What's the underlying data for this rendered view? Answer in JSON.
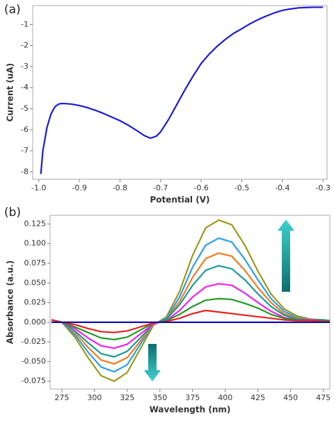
{
  "chart_data": [
    {
      "type": "line",
      "annotation": "(a)",
      "xlabel": "Potential (V)",
      "ylabel": "Current (uA)",
      "x": [
        -0.995,
        -0.99,
        -0.98,
        -0.97,
        -0.96,
        -0.95,
        -0.94,
        -0.92,
        -0.9,
        -0.88,
        -0.86,
        -0.84,
        -0.82,
        -0.8,
        -0.78,
        -0.76,
        -0.74,
        -0.725,
        -0.71,
        -0.7,
        -0.68,
        -0.66,
        -0.64,
        -0.62,
        -0.6,
        -0.58,
        -0.56,
        -0.54,
        -0.52,
        -0.5,
        -0.48,
        -0.46,
        -0.44,
        -0.42,
        -0.4,
        -0.38,
        -0.36,
        -0.34,
        -0.32,
        -0.3
      ],
      "series": [
        {
          "color": "#1a1adc",
          "values": [
            -8.1,
            -7.0,
            -5.9,
            -5.25,
            -4.9,
            -4.77,
            -4.75,
            -4.78,
            -4.85,
            -4.95,
            -5.08,
            -5.23,
            -5.4,
            -5.57,
            -5.78,
            -6.02,
            -6.28,
            -6.4,
            -6.3,
            -6.1,
            -5.5,
            -4.8,
            -4.1,
            -3.45,
            -2.85,
            -2.4,
            -2.02,
            -1.7,
            -1.42,
            -1.2,
            -0.97,
            -0.77,
            -0.6,
            -0.45,
            -0.33,
            -0.26,
            -0.21,
            -0.19,
            -0.18,
            -0.18
          ]
        }
      ],
      "xlim": [
        -1.015,
        -0.29
      ],
      "ylim": [
        -8.35,
        -0.1
      ],
      "xticks": [
        {
          "value": -1,
          "label": "-1.0"
        },
        -0.9,
        -0.8,
        -0.7,
        -0.6,
        -0.5,
        -0.4,
        -0.3
      ],
      "yticks": [
        -1,
        -2,
        -3,
        -4,
        -5,
        -6,
        -7,
        -8
      ]
    },
    {
      "type": "line",
      "annotation": "(b)",
      "xlabel": "Wavelength (nm)",
      "ylabel": "Absorbance (a.u.)",
      "x": [
        267,
        275,
        285,
        295,
        305,
        315,
        325,
        335,
        345,
        355,
        365,
        375,
        385,
        395,
        405,
        415,
        425,
        435,
        445,
        455,
        465,
        475,
        480
      ],
      "series": [
        {
          "color": "#1010b0",
          "values": [
            0,
            0,
            0,
            0,
            0,
            0,
            0,
            0,
            0,
            0,
            0,
            0,
            0,
            0,
            0,
            0,
            0,
            0,
            0,
            0,
            0,
            0,
            0
          ]
        },
        {
          "color": "#e8211c",
          "values": [
            0.003,
            0,
            -0.003,
            -0.008,
            -0.012,
            -0.013,
            -0.011,
            -0.006,
            -0.001,
            0.001,
            0.005,
            0.011,
            0.015,
            0.013,
            0.011,
            0.009,
            0.007,
            0.005,
            0.003,
            0.002,
            0.002,
            0.001,
            0.001
          ]
        },
        {
          "color": "#1f9a23",
          "values": [
            0.003,
            0,
            -0.006,
            -0.013,
            -0.02,
            -0.022,
            -0.019,
            -0.01,
            -0.001,
            0.002,
            0.01,
            0.02,
            0.028,
            0.03,
            0.029,
            0.024,
            0.018,
            0.01,
            0.005,
            0.003,
            0.002,
            0.002,
            0.002
          ]
        },
        {
          "color": "#f21ff2",
          "values": [
            0.003,
            0,
            -0.008,
            -0.02,
            -0.03,
            -0.033,
            -0.028,
            -0.015,
            -0.002,
            0.002,
            0.015,
            0.032,
            0.045,
            0.049,
            0.047,
            0.037,
            0.025,
            0.014,
            0.006,
            0.003,
            0.003,
            0.002,
            0.002
          ]
        },
        {
          "color": "#1a9a9a",
          "values": [
            0.003,
            0,
            -0.011,
            -0.026,
            -0.04,
            -0.044,
            -0.037,
            -0.02,
            -0.002,
            0.004,
            0.022,
            0.047,
            0.066,
            0.072,
            0.068,
            0.054,
            0.036,
            0.02,
            0.009,
            0.004,
            0.003,
            0.003,
            0.002
          ]
        },
        {
          "color": "#f57a1c",
          "values": [
            0.003,
            0,
            -0.013,
            -0.032,
            -0.048,
            -0.053,
            -0.045,
            -0.024,
            -0.003,
            0.004,
            0.026,
            0.057,
            0.081,
            0.088,
            0.084,
            0.066,
            0.044,
            0.025,
            0.011,
            0.005,
            0.003,
            0.003,
            0.002
          ]
        },
        {
          "color": "#2a9ee8",
          "values": [
            0.003,
            0,
            -0.016,
            -0.038,
            -0.057,
            -0.063,
            -0.054,
            -0.028,
            -0.003,
            0.005,
            0.032,
            0.07,
            0.098,
            0.107,
            0.102,
            0.08,
            0.054,
            0.03,
            0.014,
            0.006,
            0.003,
            0.003,
            0.002
          ]
        },
        {
          "color": "#9a9a1a",
          "values": [
            0.003,
            0,
            -0.019,
            -0.045,
            -0.068,
            -0.075,
            -0.064,
            -0.034,
            -0.004,
            0.007,
            0.039,
            0.085,
            0.12,
            0.13,
            0.124,
            0.098,
            0.065,
            0.036,
            0.017,
            0.008,
            0.004,
            0.003,
            0.002
          ]
        }
      ],
      "xlim": [
        266,
        480
      ],
      "ylim": [
        -0.085,
        0.136
      ],
      "xticks": [
        275,
        300,
        325,
        350,
        375,
        400,
        425,
        450,
        475
      ],
      "yticks": [
        0.125,
        {
          "value": 0.1,
          "label": "0.100"
        },
        0.075,
        {
          "value": 0.05,
          "label": "0.050"
        },
        0.025,
        {
          "value": 0,
          "label": "0.000"
        },
        -0.025,
        {
          "value": -0.05,
          "label": "-0.050"
        },
        -0.075
      ]
    }
  ]
}
